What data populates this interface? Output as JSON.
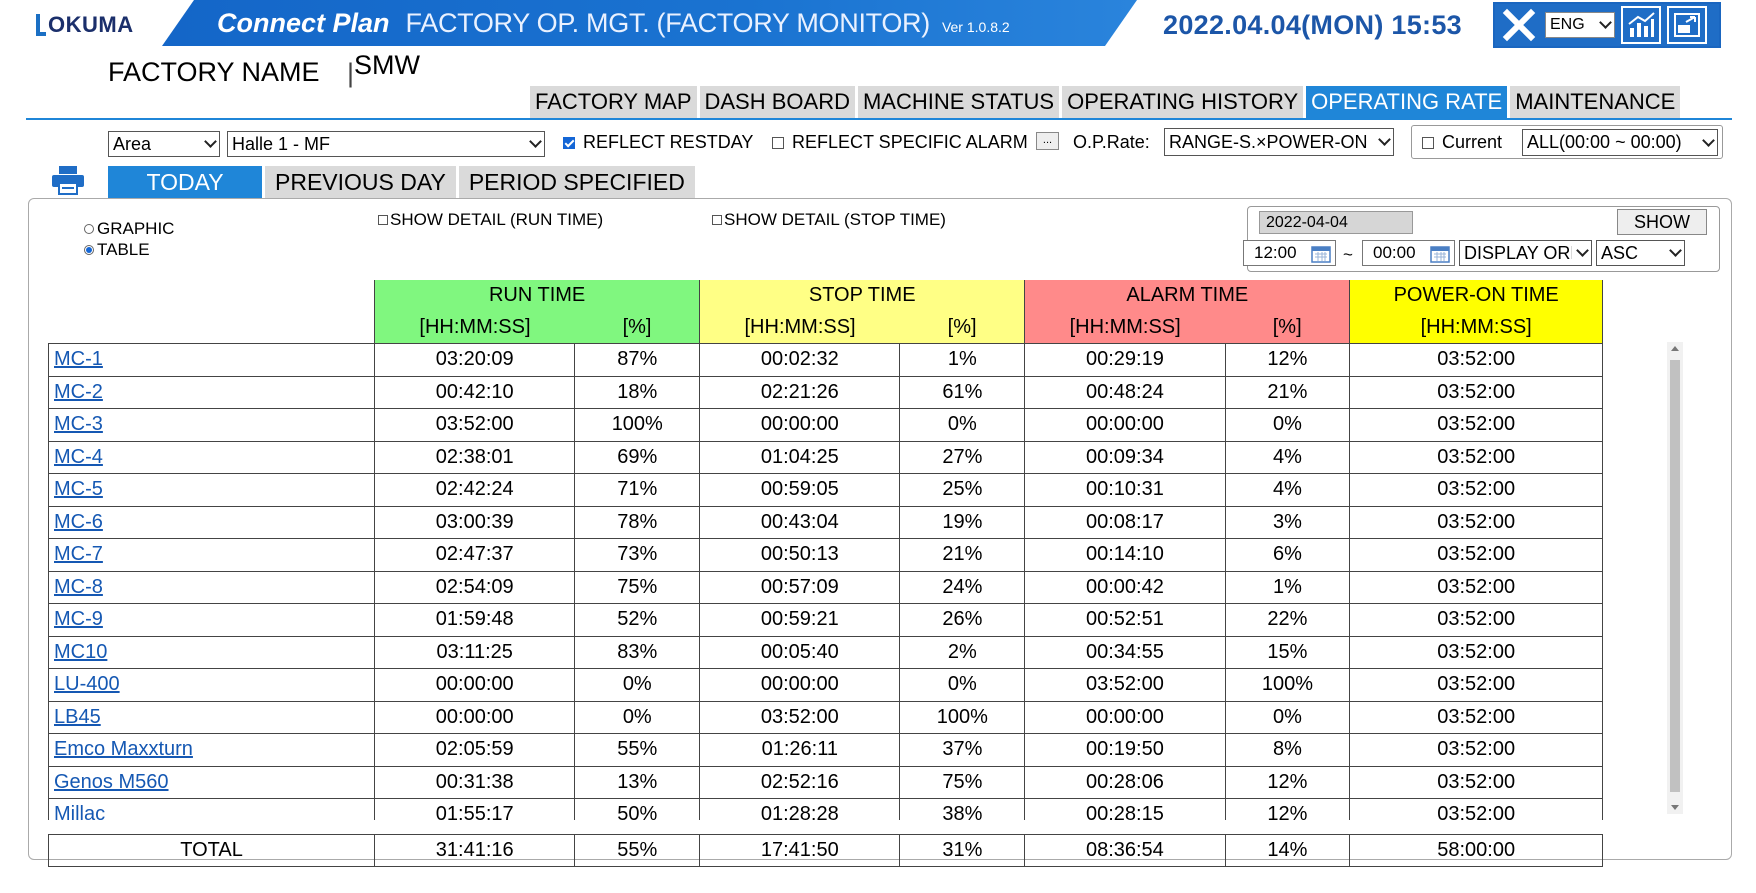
{
  "header": {
    "logo": "OKUMA",
    "brand": "Connect Plan",
    "title": "FACTORY OP. MGT. (FACTORY MONITOR)",
    "version": "Ver 1.0.8.2",
    "datetime": "2022.04.04(MON) 15:53",
    "language": "ENG"
  },
  "factory": {
    "label": "FACTORY NAME",
    "value": "SMW"
  },
  "nav_tabs": [
    "FACTORY MAP",
    "DASH BOARD",
    "MACHINE STATUS",
    "OPERATING HISTORY",
    "OPERATING RATE",
    "MAINTENANCE"
  ],
  "filters": {
    "area_type": "Area",
    "area_value": "Halle 1 - MF",
    "reflect_restday": "REFLECT RESTDAY",
    "reflect_alarm": "REFLECT SPECIFIC ALARM",
    "alarm_btn": "...",
    "oprate_label": "O.P.Rate:",
    "oprate_value": "RANGE-S.×POWER-ON",
    "current_label": "Current",
    "range_value": "ALL(00:00 ~ 00:00)"
  },
  "period_tabs": [
    "TODAY",
    "PREVIOUS DAY",
    "PERIOD SPECIFIED"
  ],
  "view": {
    "graphic": "GRAPHIC",
    "table": "TABLE",
    "detail_run": "SHOW DETAIL (RUN TIME)",
    "detail_stop": "SHOW DETAIL (STOP TIME)"
  },
  "date_panel": {
    "date": "2022-04-04",
    "show": "SHOW",
    "from": "12:00",
    "tilde": "~",
    "to": "00:00",
    "order": "DISPLAY ORDER",
    "dir": "ASC"
  },
  "columns": {
    "run": "RUN TIME",
    "stop": "STOP TIME",
    "alarm": "ALARM TIME",
    "power": "POWER-ON TIME",
    "time_unit": "[HH:MM:SS]",
    "pct_unit": "[%]"
  },
  "rows": [
    [
      "MC-1",
      "03:20:09",
      "87%",
      "00:02:32",
      "1%",
      "00:29:19",
      "12%",
      "03:52:00"
    ],
    [
      "MC-2",
      "00:42:10",
      "18%",
      "02:21:26",
      "61%",
      "00:48:24",
      "21%",
      "03:52:00"
    ],
    [
      "MC-3",
      "03:52:00",
      "100%",
      "00:00:00",
      "0%",
      "00:00:00",
      "0%",
      "03:52:00"
    ],
    [
      "MC-4",
      "02:38:01",
      "69%",
      "01:04:25",
      "27%",
      "00:09:34",
      "4%",
      "03:52:00"
    ],
    [
      "MC-5",
      "02:42:24",
      "71%",
      "00:59:05",
      "25%",
      "00:10:31",
      "4%",
      "03:52:00"
    ],
    [
      "MC-6",
      "03:00:39",
      "78%",
      "00:43:04",
      "19%",
      "00:08:17",
      "3%",
      "03:52:00"
    ],
    [
      "MC-7",
      "02:47:37",
      "73%",
      "00:50:13",
      "21%",
      "00:14:10",
      "6%",
      "03:52:00"
    ],
    [
      "MC-8",
      "02:54:09",
      "75%",
      "00:57:09",
      "24%",
      "00:00:42",
      "1%",
      "03:52:00"
    ],
    [
      "MC-9",
      "01:59:48",
      "52%",
      "00:59:21",
      "26%",
      "00:52:51",
      "22%",
      "03:52:00"
    ],
    [
      "MC10",
      "03:11:25",
      "83%",
      "00:05:40",
      "2%",
      "00:34:55",
      "15%",
      "03:52:00"
    ],
    [
      "LU-400",
      "00:00:00",
      "0%",
      "00:00:00",
      "0%",
      "03:52:00",
      "100%",
      "03:52:00"
    ],
    [
      "LB45",
      "00:00:00",
      "0%",
      "03:52:00",
      "100%",
      "00:00:00",
      "0%",
      "03:52:00"
    ],
    [
      "Emco Maxxturn",
      "02:05:59",
      "55%",
      "01:26:11",
      "37%",
      "00:19:50",
      "8%",
      "03:52:00"
    ],
    [
      "Genos M560",
      "00:31:38",
      "13%",
      "02:52:16",
      "75%",
      "00:28:06",
      "12%",
      "03:52:00"
    ],
    [
      "Millac",
      "01:55:17",
      "50%",
      "01:28:28",
      "38%",
      "00:28:15",
      "12%",
      "03:52:00"
    ]
  ],
  "total": [
    "TOTAL",
    "31:41:16",
    "55%",
    "17:41:50",
    "31%",
    "08:36:54",
    "14%",
    "58:00:00"
  ],
  "colors": {
    "accent": "#1f86d8",
    "run": "#80f77f",
    "stop": "#ffff85",
    "alarm": "#ff8a8a",
    "power": "#ffff00"
  }
}
